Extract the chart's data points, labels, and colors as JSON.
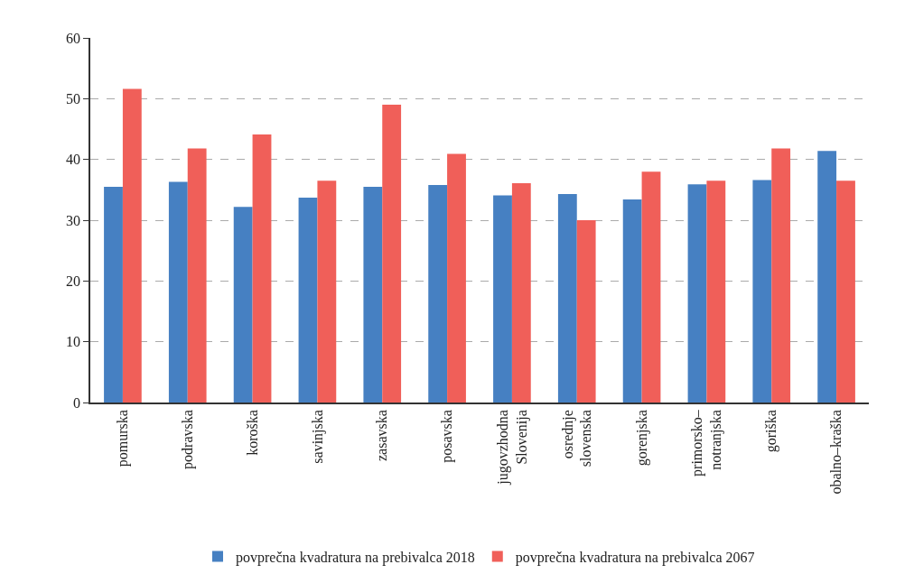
{
  "chart_data": {
    "type": "bar",
    "categories": [
      "pomurska",
      "podravska",
      "koroška",
      "savinjska",
      "zasavska",
      "posavska",
      "jugovzhodna\nSlovenija",
      "osrednje\nslovenska",
      "gorenjska",
      "primorsko–\nnotranjska",
      "goriška",
      "obalno–kraška"
    ],
    "series": [
      {
        "name": "povprečna kvadratura na prebivalca 2018",
        "color": "#4680c2",
        "values": [
          35.5,
          36.3,
          32.2,
          33.7,
          35.5,
          35.8,
          34.1,
          34.3,
          33.4,
          35.9,
          36.6,
          41.4
        ]
      },
      {
        "name": "povprečna kvadratura na prebivalca 2067",
        "color": "#f05f59",
        "values": [
          51.6,
          41.8,
          44.1,
          36.5,
          49.0,
          40.9,
          36.1,
          30.0,
          38.0,
          36.5,
          41.8,
          36.5
        ]
      }
    ],
    "ylim": [
      0,
      60
    ],
    "yticks": [
      0,
      10,
      20,
      30,
      40,
      50,
      60
    ],
    "grid": "y",
    "legend": "bottom"
  }
}
